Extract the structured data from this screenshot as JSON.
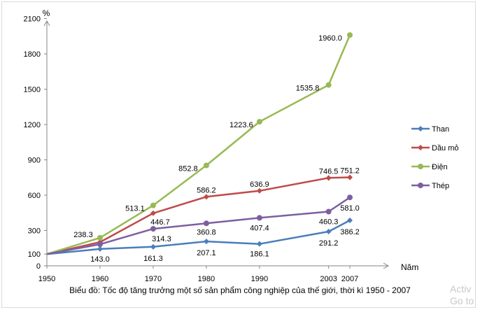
{
  "chart_data": {
    "type": "line",
    "title": "Biểu đồ: Tốc độ tăng trưởng một số sản phẩm công nghiệp của thế giới, thời kì 1950 - 2007",
    "ylabel": "%",
    "xlabel": "Năm",
    "x": [
      1950,
      1960,
      1970,
      1980,
      1990,
      2003,
      2007
    ],
    "y_ticks": [
      0,
      100,
      300,
      600,
      900,
      1200,
      1500,
      1800,
      2100
    ],
    "ylim": [
      0,
      2100
    ],
    "legend_position": "right",
    "series": [
      {
        "name": "Than",
        "color": "#4a7ebb",
        "marker": "diamond",
        "values": [
          100,
          143.0,
          161.3,
          207.1,
          186.1,
          291.2,
          386.2
        ],
        "labels": [
          "",
          "143.0",
          "161.3",
          "207.1",
          "186.1",
          "291.2",
          "386.2"
        ]
      },
      {
        "name": "Dầu mỏ",
        "color": "#be4b48",
        "marker": "diamond",
        "values": [
          100,
          201.1,
          446.7,
          586.2,
          636.9,
          746.5,
          751.2
        ],
        "labels": [
          "",
          "",
          "446.7",
          "586.2",
          "636.9",
          "746.5",
          "751.2"
        ]
      },
      {
        "name": "Điện",
        "color": "#98b954",
        "marker": "circle",
        "values": [
          100,
          238.3,
          513.1,
          852.8,
          1223.6,
          1535.8,
          1960.0
        ],
        "labels": [
          "",
          "238.3",
          "513.1",
          "852.8",
          "1223.6",
          "1535.8",
          "1960.0"
        ]
      },
      {
        "name": "Thép",
        "color": "#7d5fa0",
        "marker": "circle",
        "values": [
          100,
          183.1,
          314.3,
          360.8,
          407.4,
          460.3,
          581.0
        ],
        "labels": [
          "",
          "",
          "314.3",
          "360.8",
          "407.4",
          "460.3",
          "581.0"
        ]
      }
    ]
  },
  "watermark": {
    "line1": "Activ",
    "line2": "Go to"
  }
}
